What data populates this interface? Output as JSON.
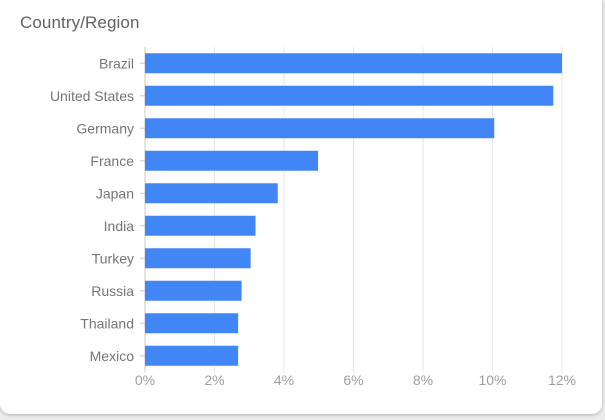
{
  "card": {
    "title": "Country/Region"
  },
  "colors": {
    "bar": "#4285f4",
    "grid": "#e6e6e6",
    "axis": "#c8c8c8"
  },
  "chart_data": {
    "type": "bar",
    "orientation": "horizontal",
    "categories": [
      "Brazil",
      "United States",
      "Germany",
      "France",
      "Japan",
      "India",
      "Turkey",
      "Russia",
      "Thailand",
      "Mexico"
    ],
    "values": [
      12.0,
      11.75,
      10.05,
      4.98,
      3.82,
      3.18,
      3.04,
      2.78,
      2.68,
      2.68
    ],
    "xlim": [
      0,
      12
    ],
    "xticks": [
      0,
      2,
      4,
      6,
      8,
      10,
      12
    ],
    "xtick_labels": [
      "0%",
      "2%",
      "4%",
      "6%",
      "8%",
      "10%",
      "12%"
    ],
    "grid": true
  }
}
